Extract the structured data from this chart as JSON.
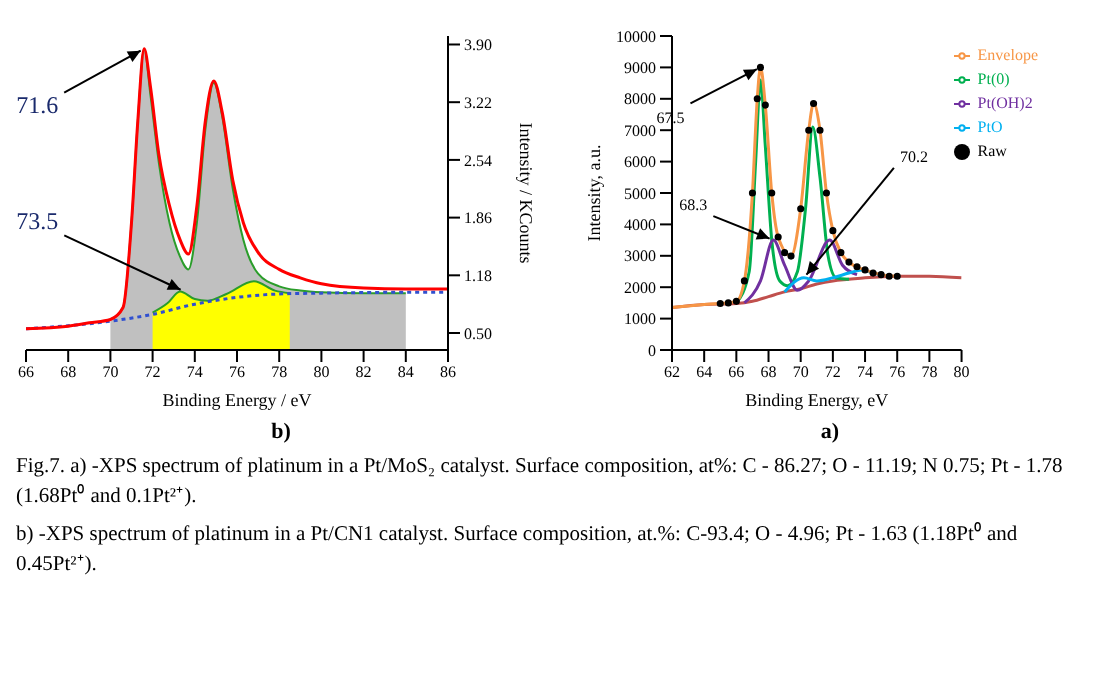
{
  "chart_data": [
    {
      "type": "line",
      "xlabel": "Binding Energy / eV",
      "ylabel": "Intensity / KCounts",
      "xlim": [
        66,
        86
      ],
      "xticks": [
        66,
        68,
        70,
        72,
        74,
        76,
        78,
        80,
        82,
        84,
        86
      ],
      "ylim": [
        0.3,
        4.0
      ],
      "yticks": [
        {
          "value": 0.5,
          "label": "0.50"
        },
        1.18,
        1.86,
        2.54,
        3.22,
        {
          "value": 3.9,
          "label": "3.90"
        }
      ],
      "grid": false,
      "legend": false,
      "annotations": [
        {
          "text": "71.6",
          "x": 71.6,
          "y": 3.85
        },
        {
          "text": "73.5",
          "x": 73.5,
          "y": 0.99
        },
        "b)",
        "Fig.7. a) -XPS spectrum of platinum in a Pt/MoS₂ catalyst. Surface composition, at%: C - 86.27; O - 11.19; N 0.75; Pt - 1.78 (1.68Pt⁰ and 0.1Pt²⁺).",
        "b) -XPS spectrum of platinum in a Pt/CN1 catalyst. Surface composition, at.%: C-93.4; O - 4.96; Pt - 1.63 (1.18Pt⁰ and 0.45Pt²⁺)."
      ],
      "series": [
        {
          "type": "area",
          "color": "#c0c0c0",
          "x": [
            70,
            70.6,
            71,
            71.3,
            71.6,
            71.9,
            72.3,
            72.8,
            73.3,
            73.7,
            74.1,
            74.5,
            74.9,
            75.3,
            75.8,
            76.3,
            77,
            78,
            79,
            80,
            82,
            84
          ],
          "values": [
            0.66,
            0.8,
            1.8,
            3.0,
            3.85,
            3.3,
            2.5,
            1.8,
            1.4,
            1.25,
            1.8,
            2.9,
            3.45,
            3.05,
            2.2,
            1.6,
            1.2,
            1.05,
            1.0,
            0.98,
            0.97,
            0.97
          ]
        },
        {
          "type": "area",
          "color": "#ffff00",
          "x": [
            72,
            72.7,
            73.3,
            74,
            74.6,
            75.5,
            76.8,
            77.8,
            78.5
          ],
          "values": [
            0.74,
            0.85,
            0.99,
            0.9,
            0.88,
            0.96,
            1.11,
            1.0,
            0.97
          ]
        },
        {
          "color": "#3050d0",
          "line_style": "dotted",
          "x": [
            66,
            70,
            72,
            74,
            76,
            78,
            80,
            84,
            86
          ],
          "values": [
            0.55,
            0.64,
            0.72,
            0.84,
            0.92,
            0.96,
            0.97,
            0.98,
            0.98
          ]
        },
        {
          "color": "#ff0000",
          "x": [
            66,
            68,
            69,
            70,
            70.6,
            71,
            71.3,
            71.6,
            71.9,
            72.3,
            72.8,
            73.3,
            73.7,
            74.1,
            74.5,
            74.9,
            75.3,
            75.8,
            76.3,
            77,
            78,
            79,
            80,
            82,
            84,
            86
          ],
          "values": [
            0.55,
            0.58,
            0.62,
            0.66,
            0.8,
            1.8,
            3.0,
            3.85,
            3.4,
            2.6,
            2.0,
            1.6,
            1.43,
            2.0,
            3.0,
            3.47,
            3.1,
            2.3,
            1.8,
            1.45,
            1.25,
            1.15,
            1.08,
            1.03,
            1.02,
            1.02
          ]
        }
      ]
    },
    {
      "type": "line",
      "xlabel": "Binding Energy, eV",
      "ylabel": "Intensity, a.u.",
      "xlim": [
        62,
        80
      ],
      "xticks": [
        62,
        64,
        66,
        68,
        70,
        72,
        74,
        76,
        78,
        80
      ],
      "ylim": [
        0,
        10000
      ],
      "yticks": [
        0,
        1000,
        2000,
        3000,
        4000,
        5000,
        6000,
        7000,
        8000,
        9000,
        10000
      ],
      "grid": false,
      "legend": "top right",
      "annotations": [
        {
          "text": "67.5",
          "x": 67.5,
          "y": 9000
        },
        {
          "text": "68.3",
          "x": 68.3,
          "y": 3500
        },
        {
          "text": "70.2",
          "x": 70.2,
          "y": 2300
        },
        "a)"
      ],
      "series": [
        {
          "color": "#c0504d",
          "x": [
            62,
            64,
            66,
            67,
            68,
            69,
            70,
            71,
            72,
            73,
            74,
            76,
            78,
            80
          ],
          "values": [
            1350,
            1450,
            1480,
            1550,
            1700,
            1850,
            1950,
            2100,
            2200,
            2250,
            2300,
            2350,
            2350,
            2300
          ]
        },
        {
          "name": "Raw",
          "type": "scatter",
          "marker": "circle",
          "color": "#000000",
          "x": [
            65,
            65.5,
            66,
            66.5,
            67,
            67.3,
            67.5,
            67.8,
            68.2,
            68.6,
            69,
            69.4,
            70,
            70.5,
            70.8,
            71.2,
            71.6,
            72,
            72.5,
            73,
            73.5,
            74,
            74.5,
            75,
            75.5,
            76
          ],
          "values": [
            1480,
            1500,
            1550,
            2200,
            5000,
            8000,
            9000,
            7800,
            5000,
            3600,
            3100,
            2990,
            4500,
            7000,
            7850,
            7000,
            5000,
            3800,
            3100,
            2800,
            2650,
            2550,
            2450,
            2400,
            2350,
            2350
          ]
        },
        {
          "name": "Pt(0)",
          "color": "#00b050",
          "x": [
            66,
            66.8,
            67.2,
            67.5,
            67.8,
            68.2,
            68.7,
            69.2,
            69.8,
            70.3,
            70.75,
            71.2,
            71.7,
            72.2,
            73
          ],
          "values": [
            1500,
            2500,
            6000,
            8600,
            6500,
            3500,
            2200,
            2050,
            2500,
            4500,
            7100,
            5500,
            3000,
            2300,
            2250
          ]
        },
        {
          "name": "Pt(OH)2",
          "color": "#7030a0",
          "x": [
            66.5,
            67.5,
            68.3,
            69,
            69.8,
            70.5,
            71.8,
            72.6,
            73.5
          ],
          "values": [
            1500,
            2200,
            3500,
            2700,
            1900,
            2200,
            3500,
            2700,
            2400
          ]
        },
        {
          "name": "PtO",
          "color": "#00b0f0",
          "x": [
            69,
            70.2,
            71,
            72,
            73,
            73.8,
            74.5,
            75
          ],
          "values": [
            1850,
            2300,
            2200,
            2300,
            2450,
            2550,
            2450,
            2400
          ]
        },
        {
          "name": "Envelope",
          "color": "#f79646",
          "x": [
            62,
            64,
            65,
            66,
            66.5,
            67,
            67.3,
            67.5,
            67.8,
            68.2,
            68.6,
            69.4,
            70,
            70.5,
            70.8,
            71.2,
            71.6,
            72,
            72.5,
            73,
            74,
            75,
            76
          ],
          "values": [
            1350,
            1450,
            1480,
            1550,
            2200,
            5000,
            8000,
            9000,
            7800,
            5000,
            3600,
            2990,
            4500,
            7000,
            7850,
            7000,
            5000,
            3800,
            3100,
            2800,
            2550,
            2400,
            2350
          ]
        }
      ]
    }
  ]
}
